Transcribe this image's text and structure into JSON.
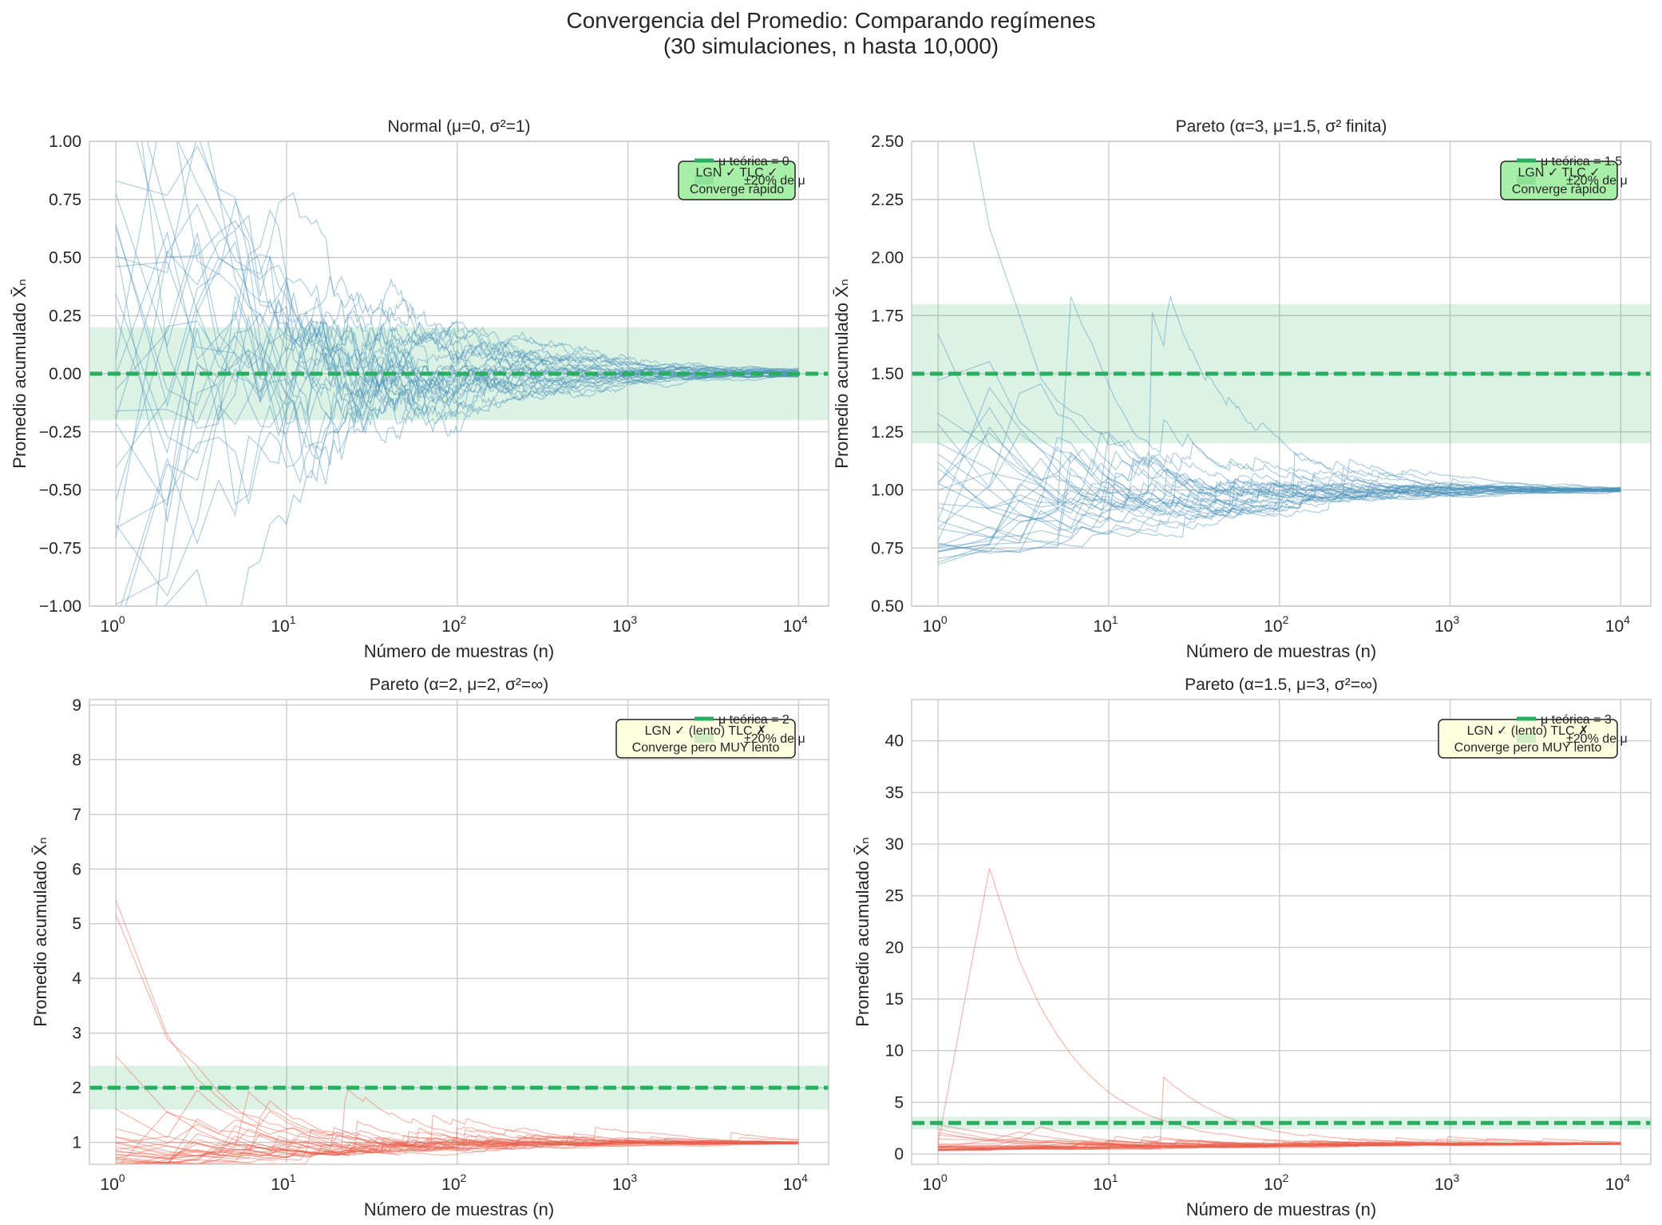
{
  "suptitle": {
    "line1": "Convergencia del Promedio: Comparando regímenes",
    "line2": "(30 simulaciones, n hasta 10,000)"
  },
  "colors": {
    "grid": "#cccccc",
    "axis_frame": "#cccccc",
    "blue_series": "#4a90b8",
    "red_series": "#e8604c",
    "mu_line": "#27ae60",
    "band": "#27ae60",
    "good_box": "#a8f0a8",
    "slow_box": "#fdfde0"
  },
  "chart_data": [
    {
      "type": "line",
      "title": "Normal (μ=0, σ²=1)",
      "xlabel": "Número de muestras (n)",
      "ylabel": "Promedio acumulado X̄ₙ",
      "xscale": "log",
      "xlim": [
        0.7,
        15000
      ],
      "ylim": [
        -1.0,
        1.0
      ],
      "yticks": [
        -1.0,
        -0.75,
        -0.5,
        -0.25,
        0.0,
        0.25,
        0.5,
        0.75,
        1.0
      ],
      "ytick_labels": [
        "−1.00",
        "−0.75",
        "−0.50",
        "−0.25",
        "0.00",
        "0.25",
        "0.50",
        "0.75",
        "1.00"
      ],
      "xticks": [
        1,
        10,
        100,
        1000,
        10000
      ],
      "xtick_labels": [
        {
          "base": "10",
          "exp": "0"
        },
        {
          "base": "10",
          "exp": "1"
        },
        {
          "base": "10",
          "exp": "2"
        },
        {
          "base": "10",
          "exp": "3"
        },
        {
          "base": "10",
          "exp": "4"
        }
      ],
      "mu": 0,
      "band": [
        -0.2,
        0.2
      ],
      "series_color": "blue",
      "n_simulations": 30,
      "sim": {
        "kind": "normal",
        "seed": 11,
        "scale": 1.0
      },
      "legend": [
        "μ teórica = 0",
        "±20% de μ"
      ],
      "annotation": {
        "line1": "LGN ✓ TLC ✓",
        "line2": "Converge rápido",
        "style": "good"
      }
    },
    {
      "type": "line",
      "title": "Pareto (α=3, μ=1.5, σ² finita)",
      "xlabel": "Número de muestras (n)",
      "ylabel": "Promedio acumulado X̄ₙ",
      "xscale": "log",
      "xlim": [
        0.7,
        15000
      ],
      "ylim": [
        0.5,
        2.5
      ],
      "yticks": [
        0.5,
        0.75,
        1.0,
        1.25,
        1.5,
        1.75,
        2.0,
        2.25,
        2.5
      ],
      "ytick_labels": [
        "0.50",
        "0.75",
        "1.00",
        "1.25",
        "1.50",
        "1.75",
        "2.00",
        "2.25",
        "2.50"
      ],
      "xticks": [
        1,
        10,
        100,
        1000,
        10000
      ],
      "xtick_labels": [
        {
          "base": "10",
          "exp": "0"
        },
        {
          "base": "10",
          "exp": "1"
        },
        {
          "base": "10",
          "exp": "2"
        },
        {
          "base": "10",
          "exp": "3"
        },
        {
          "base": "10",
          "exp": "4"
        }
      ],
      "mu": 1.5,
      "band": [
        1.2,
        1.8
      ],
      "series_color": "blue",
      "n_simulations": 30,
      "sim": {
        "kind": "pareto",
        "alpha": 3,
        "seed": 23
      },
      "legend": [
        "μ teórica = 1.5",
        "±20% de μ"
      ],
      "annotation": {
        "line1": "LGN ✓ TLC ✓",
        "line2": "Converge rápido",
        "style": "good"
      }
    },
    {
      "type": "line",
      "title": "Pareto (α=2, μ=2, σ²=∞)",
      "xlabel": "Número de muestras (n)",
      "ylabel": "Promedio acumulado X̄ₙ",
      "xscale": "log",
      "xlim": [
        0.7,
        15000
      ],
      "ylim": [
        0.6,
        9.1
      ],
      "yticks": [
        1,
        2,
        3,
        4,
        5,
        6,
        7,
        8,
        9
      ],
      "ytick_labels": [
        "1",
        "2",
        "3",
        "4",
        "5",
        "6",
        "7",
        "8",
        "9"
      ],
      "xticks": [
        1,
        10,
        100,
        1000,
        10000
      ],
      "xtick_labels": [
        {
          "base": "10",
          "exp": "0"
        },
        {
          "base": "10",
          "exp": "1"
        },
        {
          "base": "10",
          "exp": "2"
        },
        {
          "base": "10",
          "exp": "3"
        },
        {
          "base": "10",
          "exp": "4"
        }
      ],
      "mu": 2,
      "band": [
        1.6,
        2.4
      ],
      "series_color": "red",
      "n_simulations": 30,
      "sim": {
        "kind": "pareto",
        "alpha": 2,
        "seed": 37
      },
      "legend": [
        "μ teórica = 2",
        "±20% de μ"
      ],
      "annotation": {
        "line1": "LGN ✓ (lento) TLC ✗",
        "line2": "Converge pero MUY lento",
        "style": "slow"
      }
    },
    {
      "type": "line",
      "title": "Pareto (α=1.5, μ=3, σ²=∞)",
      "xlabel": "Número de muestras (n)",
      "ylabel": "Promedio acumulado X̄ₙ",
      "xscale": "log",
      "xlim": [
        0.7,
        15000
      ],
      "ylim": [
        -1.0,
        44.0
      ],
      "yticks": [
        0,
        5,
        10,
        15,
        20,
        25,
        30,
        35,
        40
      ],
      "ytick_labels": [
        "0",
        "5",
        "10",
        "15",
        "20",
        "25",
        "30",
        "35",
        "40"
      ],
      "xticks": [
        1,
        10,
        100,
        1000,
        10000
      ],
      "xtick_labels": [
        {
          "base": "10",
          "exp": "0"
        },
        {
          "base": "10",
          "exp": "1"
        },
        {
          "base": "10",
          "exp": "2"
        },
        {
          "base": "10",
          "exp": "3"
        },
        {
          "base": "10",
          "exp": "4"
        }
      ],
      "mu": 3,
      "band": [
        2.4,
        3.6
      ],
      "series_color": "red",
      "n_simulations": 30,
      "sim": {
        "kind": "pareto",
        "alpha": 1.5,
        "seed": 53
      },
      "legend": [
        "μ teórica = 3",
        "±20% de μ"
      ],
      "annotation": {
        "line1": "LGN ✓ (lento) TLC ✗",
        "line2": "Converge pero MUY lento",
        "style": "slow"
      }
    }
  ]
}
